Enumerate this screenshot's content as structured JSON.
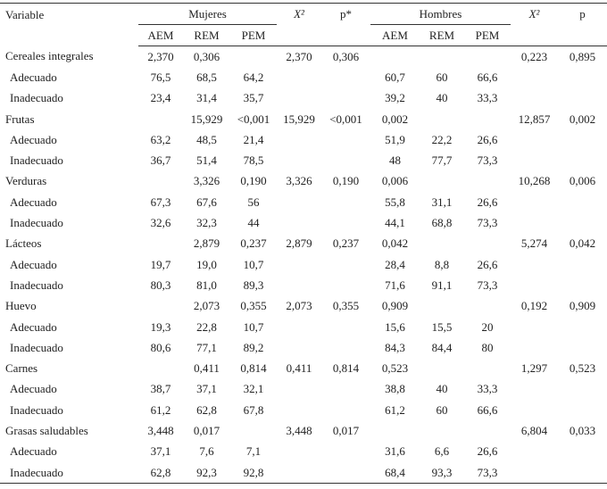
{
  "table": {
    "header": {
      "variable": "Variable",
      "mujeres": "Mujeres",
      "x2_m": "X²",
      "p_m": "p*",
      "hombres": "Hombres",
      "x2_h": "X²",
      "p_h": "p",
      "sub": [
        "AEM",
        "REM",
        "PEM",
        "AEM",
        "REM",
        "PEM"
      ]
    },
    "groups": [
      {
        "label": "Cereales integrales",
        "cells": [
          "2,370",
          "0,306",
          null,
          "2,370",
          "0,306",
          null,
          null,
          null,
          "0,223",
          "0,895"
        ],
        "subrows": [
          {
            "label": "Adecuado",
            "cells": [
              "76,5",
              "68,5",
              "64,2",
              null,
              null,
              "60,7",
              "60",
              "66,6",
              null,
              null
            ]
          },
          {
            "label": "Inadecuado",
            "cells": [
              "23,4",
              "31,4",
              "35,7",
              null,
              null,
              "39,2",
              "40",
              "33,3",
              null,
              null
            ]
          }
        ]
      },
      {
        "label": "Frutas",
        "cells": [
          null,
          "15,929",
          "<0,001",
          "15,929",
          "<0,001",
          "0,002",
          null,
          null,
          "12,857",
          "0,002"
        ],
        "subrows": [
          {
            "label": "Adecuado",
            "cells": [
              "63,2",
              "48,5",
              "21,4",
              null,
              null,
              "51,9",
              "22,2",
              "26,6",
              null,
              null
            ]
          },
          {
            "label": "Inadecuado",
            "cells": [
              "36,7",
              "51,4",
              "78,5",
              null,
              null,
              "48",
              "77,7",
              "73,3",
              null,
              null
            ]
          }
        ]
      },
      {
        "label": "Verduras",
        "cells": [
          null,
          "3,326",
          "0,190",
          "3,326",
          "0,190",
          "0,006",
          null,
          null,
          "10,268",
          "0,006"
        ],
        "subrows": [
          {
            "label": "Adecuado",
            "cells": [
              "67,3",
              "67,6",
              "56",
              null,
              null,
              "55,8",
              "31,1",
              "26,6",
              null,
              null
            ]
          },
          {
            "label": "Inadecuado",
            "cells": [
              "32,6",
              "32,3",
              "44",
              null,
              null,
              "44,1",
              "68,8",
              "73,3",
              null,
              null
            ]
          }
        ]
      },
      {
        "label": "Lácteos",
        "cells": [
          null,
          "2,879",
          "0,237",
          "2,879",
          "0,237",
          "0,042",
          null,
          null,
          "5,274",
          "0,042"
        ],
        "subrows": [
          {
            "label": "Adecuado",
            "cells": [
              "19,7",
              "19,0",
              "10,7",
              null,
              null,
              "28,4",
              "8,8",
              "26,6",
              null,
              null
            ]
          },
          {
            "label": "Inadecuado",
            "cells": [
              "80,3",
              "81,0",
              "89,3",
              null,
              null,
              "71,6",
              "91,1",
              "73,3",
              null,
              null
            ]
          }
        ]
      },
      {
        "label": "Huevo",
        "cells": [
          null,
          "2,073",
          "0,355",
          "2,073",
          "0,355",
          "0,909",
          null,
          null,
          "0,192",
          "0,909"
        ],
        "subrows": [
          {
            "label": "Adecuado",
            "cells": [
              "19,3",
              "22,8",
              "10,7",
              null,
              null,
              "15,6",
              "15,5",
              "20",
              null,
              null
            ]
          },
          {
            "label": "Inadecuado",
            "cells": [
              "80,6",
              "77,1",
              "89,2",
              null,
              null,
              "84,3",
              "84,4",
              "80",
              null,
              null
            ]
          }
        ]
      },
      {
        "label": "Carnes",
        "cells": [
          null,
          "0,411",
          "0,814",
          "0,411",
          "0,814",
          "0,523",
          null,
          null,
          "1,297",
          "0,523"
        ],
        "subrows": [
          {
            "label": "Adecuado",
            "cells": [
              "38,7",
              "37,1",
              "32,1",
              null,
              null,
              "38,8",
              "40",
              "33,3",
              null,
              null
            ]
          },
          {
            "label": "Inadecuado",
            "cells": [
              "61,2",
              "62,8",
              "67,8",
              null,
              null,
              "61,2",
              "60",
              "66,6",
              null,
              null
            ]
          }
        ]
      },
      {
        "label": "Grasas saludables",
        "cells": [
          "3,448",
          "0,017",
          null,
          "3,448",
          "0,017",
          null,
          null,
          null,
          "6,804",
          "0,033"
        ],
        "subrows": [
          {
            "label": "Adecuado",
            "cells": [
              "37,1",
              "7,6",
              "7,1",
              null,
              null,
              "31,6",
              "6,6",
              "26,6",
              null,
              null
            ]
          },
          {
            "label": "Inadecuado",
            "cells": [
              "62,8",
              "92,3",
              "92,8",
              null,
              null,
              "68,4",
              "93,3",
              "73,3",
              null,
              null
            ]
          }
        ]
      }
    ]
  }
}
